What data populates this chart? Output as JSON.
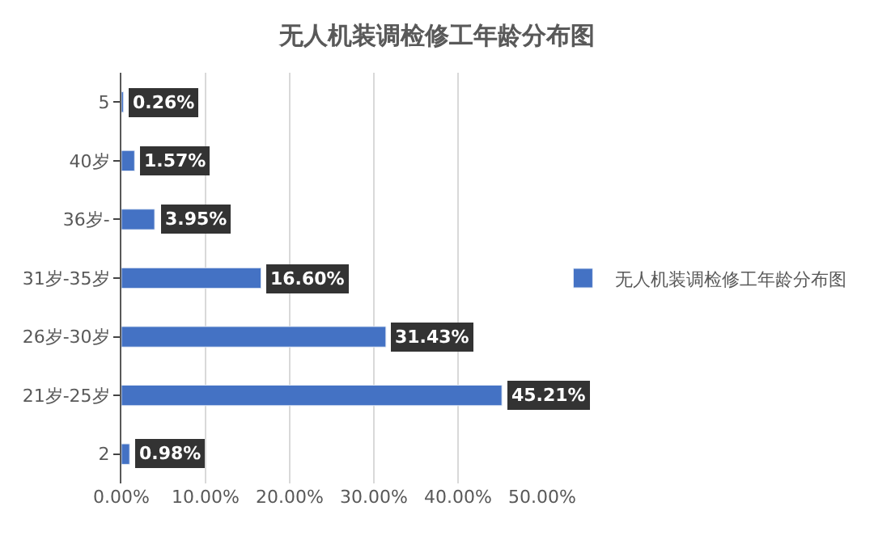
{
  "chart_data": {
    "type": "bar",
    "orientation": "horizontal",
    "title": "无人机装调检修工年龄分布图",
    "categories": [
      "5",
      "40岁",
      "36岁-",
      "31岁-35岁",
      "26岁-30岁",
      "21岁-25岁",
      "2"
    ],
    "series": [
      {
        "name": "无人机装调检修工年龄分布图",
        "color": "#4472c4",
        "values": [
          0.26,
          1.57,
          3.95,
          16.6,
          31.43,
          45.21,
          0.98
        ]
      }
    ],
    "value_labels": [
      "0.26%",
      "1.57%",
      "3.95%",
      "16.60%",
      "31.43%",
      "45.21%",
      "0.98%"
    ],
    "xlim": [
      0,
      50
    ],
    "xticks": [
      {
        "value": 0,
        "label": "0.00%"
      },
      {
        "value": 10,
        "label": "10.00%"
      },
      {
        "value": 20,
        "label": "20.00%"
      },
      {
        "value": 30,
        "label": "30.00%"
      },
      {
        "value": 40,
        "label": "40.00%"
      },
      {
        "value": 50,
        "label": "50.00%"
      }
    ],
    "grid": "x",
    "legend": "right"
  }
}
